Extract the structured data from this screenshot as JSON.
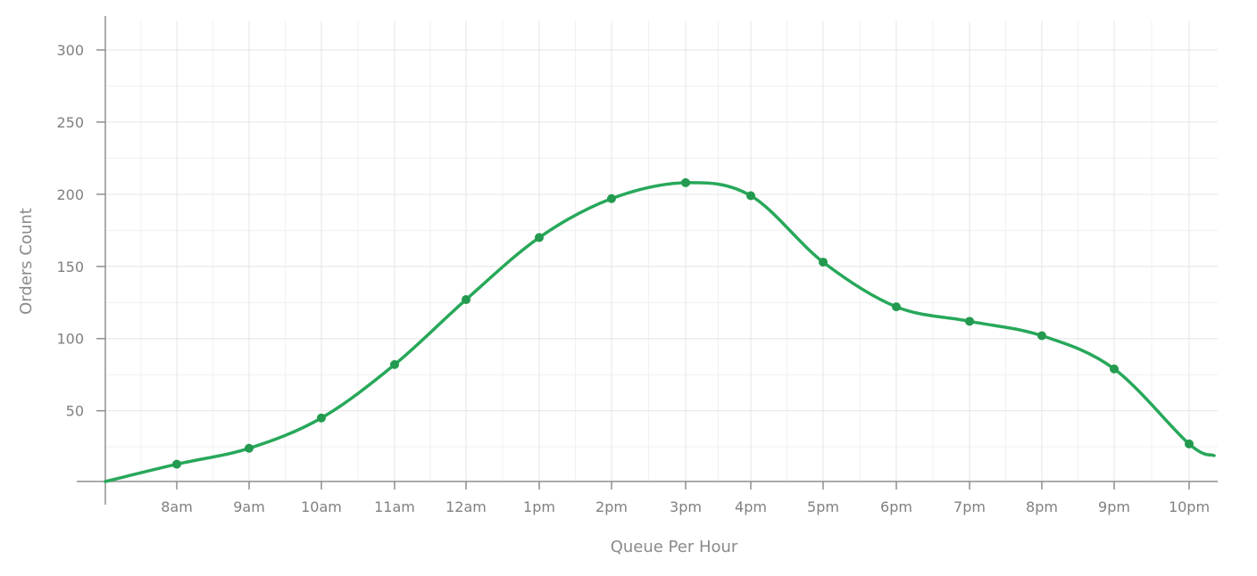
{
  "chart_data": {
    "type": "line",
    "title": "",
    "xlabel": "Queue Per Hour",
    "ylabel": "Orders Count",
    "categories": [
      "8am",
      "9am",
      "10am",
      "11am",
      "12am",
      "1pm",
      "2pm",
      "3pm",
      "4pm",
      "5pm",
      "6pm",
      "7pm",
      "8pm",
      "9pm",
      "10pm"
    ],
    "series": [
      {
        "name": "",
        "values": [
          13,
          24,
          45,
          82,
          127,
          170,
          197,
          208,
          199,
          153,
          122,
          112,
          102,
          79,
          27
        ]
      }
    ],
    "x_start_value": 1,
    "x_end_value": 19,
    "ylim": [
      1,
      320
    ],
    "yticks": [
      50,
      100,
      150,
      200,
      250,
      300
    ],
    "grid": true,
    "legend": "none",
    "colors": {
      "line": "#27a85a",
      "point": "#239a4f",
      "grid": "#e6e6e6",
      "axis": "#8f8f8f",
      "text": "#808080"
    }
  }
}
